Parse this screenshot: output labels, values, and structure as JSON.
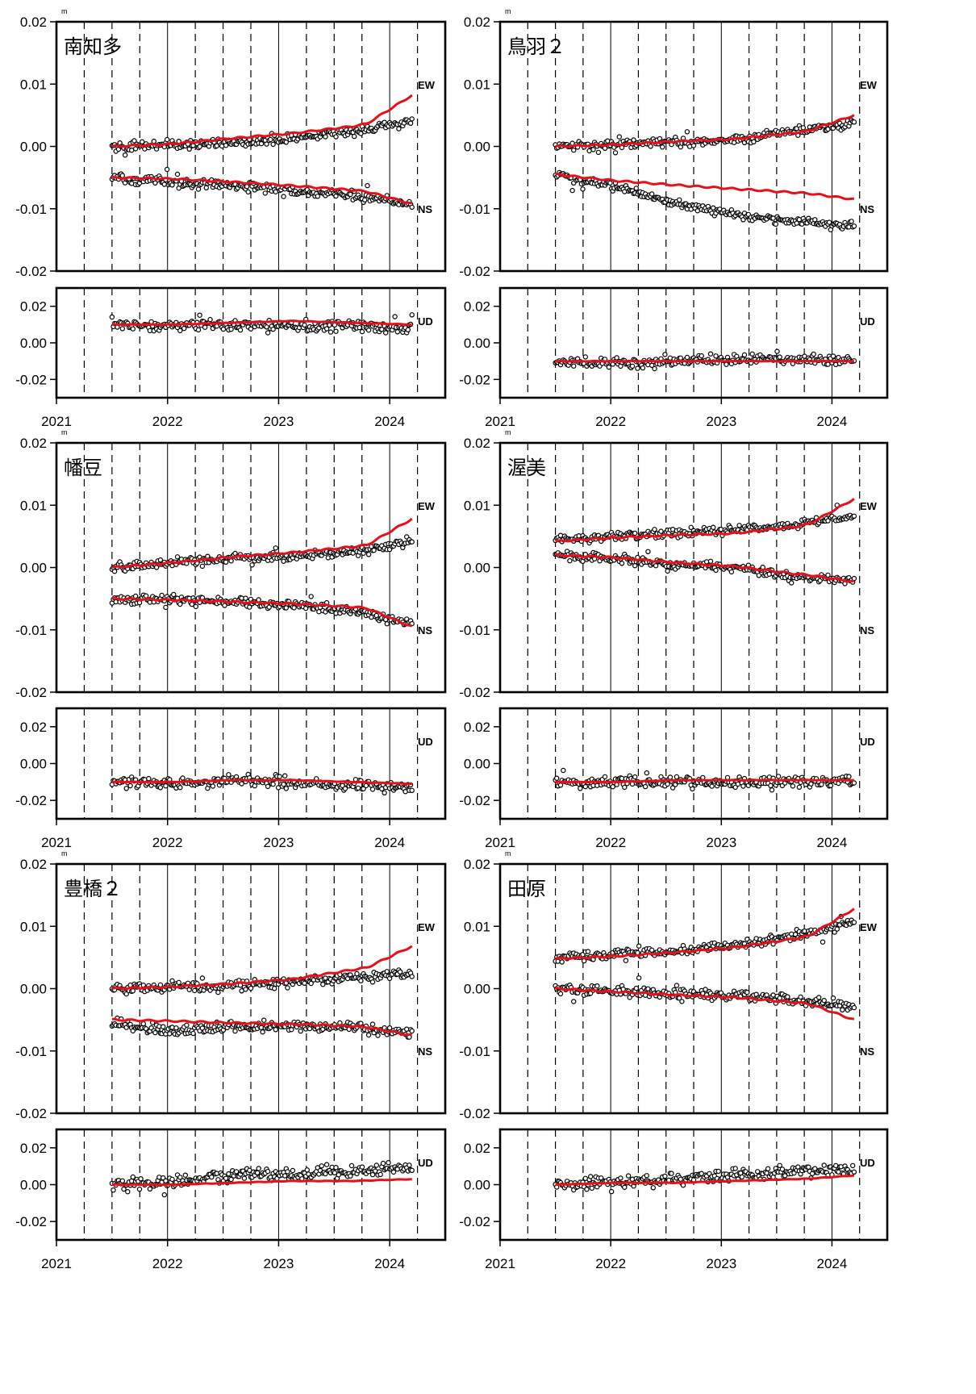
{
  "figure": {
    "unit": "m",
    "x_ticks": [
      "2021",
      "2022",
      "2023",
      "2024"
    ],
    "x_range": [
      2021.0,
      2024.5
    ],
    "horizontal": {
      "ylim": [
        -0.02,
        0.02
      ],
      "ticks": [
        "0.02",
        "0.01",
        "0.00",
        "-0.01",
        "-0.02"
      ],
      "labels": [
        "EW",
        "NS"
      ]
    },
    "vertical": {
      "ylim": [
        -0.03,
        0.03
      ],
      "ticks": [
        "0.02",
        "0.00",
        "-0.02"
      ],
      "label": "UD"
    },
    "colors": {
      "observed": "#000000",
      "model": "#e8101a",
      "frame": "#000000"
    }
  },
  "chart_data": [
    {
      "type": "scatter",
      "station": "南知多",
      "column": 0,
      "row": 0,
      "series": [
        {
          "component": "EW",
          "obs_start": 0.0,
          "obs_end": 0.0068,
          "model_end": 0.0082,
          "spread": 0.0006,
          "offset": [
            0.0,
            0.0002,
            0.0005,
            0.0013,
            0.0024,
            0.004
          ],
          "model": [
            0.0,
            0.0004,
            0.0013,
            0.0021,
            0.0032,
            0.005
          ]
        },
        {
          "component": "NS",
          "obs_start": -0.005,
          "obs_end": -0.0105,
          "model_end": -0.0092,
          "spread": 0.0006,
          "offset": [
            -0.005,
            -0.0058,
            -0.0063,
            -0.007,
            -0.0078,
            -0.0092
          ],
          "model": [
            -0.005,
            -0.0052,
            -0.0057,
            -0.0063,
            -0.007,
            -0.008
          ]
        },
        {
          "component": "UD",
          "obs_start": 0.01,
          "obs_end": 0.008,
          "model_end": 0.01,
          "spread": 0.0025,
          "offset": [
            0.01,
            0.009,
            0.01,
            0.009,
            0.009,
            0.008
          ],
          "model": [
            0.01,
            0.01,
            0.011,
            0.012,
            0.011,
            0.01
          ]
        }
      ]
    },
    {
      "type": "scatter",
      "station": "鳥羽２",
      "column": 1,
      "row": 0,
      "series": [
        {
          "component": "EW",
          "obs_start": 0.0,
          "obs_end": 0.0045,
          "model_end": 0.005,
          "spread": 0.0006,
          "offset": [
            0.0,
            0.0003,
            0.0008,
            0.001,
            0.0025,
            0.0038
          ],
          "model": [
            0.0,
            0.0003,
            0.0008,
            0.0012,
            0.0022,
            0.0036
          ]
        },
        {
          "component": "NS",
          "obs_start": -0.0045,
          "obs_end": -0.0135,
          "model_end": -0.0085,
          "spread": 0.0006,
          "offset": [
            -0.0045,
            -0.0065,
            -0.009,
            -0.011,
            -0.012,
            -0.0128
          ],
          "model": [
            -0.0045,
            -0.0055,
            -0.0062,
            -0.0068,
            -0.0074,
            -0.008
          ]
        },
        {
          "component": "UD",
          "obs_start": -0.01,
          "obs_end": -0.011,
          "model_end": -0.01,
          "spread": 0.0025,
          "offset": [
            -0.01,
            -0.011,
            -0.01,
            -0.009,
            -0.009,
            -0.01
          ],
          "model": [
            -0.01,
            -0.01,
            -0.01,
            -0.01,
            -0.01,
            -0.01
          ]
        }
      ]
    },
    {
      "type": "scatter",
      "station": "幡豆",
      "column": 0,
      "row": 1,
      "series": [
        {
          "component": "EW",
          "obs_start": 0.0,
          "obs_end": 0.0075,
          "model_end": 0.0078,
          "spread": 0.0006,
          "offset": [
            0.0,
            0.0008,
            0.0015,
            0.0018,
            0.0025,
            0.0042
          ],
          "model": [
            0.0,
            0.0008,
            0.0017,
            0.0024,
            0.0033,
            0.0045
          ]
        },
        {
          "component": "NS",
          "obs_start": -0.005,
          "obs_end": -0.012,
          "model_end": -0.0095,
          "spread": 0.0006,
          "offset": [
            -0.005,
            -0.0052,
            -0.0055,
            -0.006,
            -0.007,
            -0.009
          ],
          "model": [
            -0.005,
            -0.0052,
            -0.0055,
            -0.0058,
            -0.0063,
            -0.0072
          ]
        },
        {
          "component": "UD",
          "obs_start": -0.01,
          "obs_end": -0.014,
          "model_end": -0.011,
          "spread": 0.0025,
          "offset": [
            -0.01,
            -0.011,
            -0.009,
            -0.01,
            -0.012,
            -0.013
          ],
          "model": [
            -0.01,
            -0.01,
            -0.009,
            -0.009,
            -0.01,
            -0.011
          ]
        }
      ]
    },
    {
      "type": "scatter",
      "station": "渥美",
      "column": 1,
      "row": 1,
      "series": [
        {
          "component": "EW",
          "obs_start": 0.0045,
          "obs_end": 0.011,
          "model_end": 0.011,
          "spread": 0.0006,
          "offset": [
            0.0045,
            0.005,
            0.0055,
            0.006,
            0.0068,
            0.0085
          ],
          "model": [
            0.0042,
            0.0048,
            0.0052,
            0.0055,
            0.0065,
            0.0085
          ]
        },
        {
          "component": "NS",
          "obs_start": 0.002,
          "obs_end": -0.0025,
          "model_end": -0.0023,
          "spread": 0.0006,
          "offset": [
            0.002,
            0.0015,
            0.0005,
            0.0,
            -0.0015,
            -0.002
          ],
          "model": [
            0.002,
            0.0016,
            0.0008,
            0.0002,
            -0.001,
            -0.0018
          ]
        },
        {
          "component": "UD",
          "obs_start": -0.01,
          "obs_end": -0.01,
          "model_end": -0.009,
          "spread": 0.0025,
          "offset": [
            -0.01,
            -0.01,
            -0.01,
            -0.01,
            -0.01,
            -0.01
          ],
          "model": [
            -0.01,
            -0.01,
            -0.009,
            -0.009,
            -0.009,
            -0.009
          ]
        }
      ]
    },
    {
      "type": "scatter",
      "station": "豊橋２",
      "column": 0,
      "row": 2,
      "series": [
        {
          "component": "EW",
          "obs_start": 0.0,
          "obs_end": 0.0038,
          "model_end": 0.0068,
          "spread": 0.0007,
          "offset": [
            0.0,
            0.0003,
            0.0005,
            0.001,
            0.0018,
            0.0025
          ],
          "model": [
            0.0,
            0.0003,
            0.0008,
            0.0015,
            0.003,
            0.0045
          ]
        },
        {
          "component": "NS",
          "obs_start": -0.0055,
          "obs_end": -0.0085,
          "model_end": -0.0075,
          "spread": 0.0007,
          "offset": [
            -0.0055,
            -0.0068,
            -0.0062,
            -0.006,
            -0.0062,
            -0.0072
          ],
          "model": [
            -0.005,
            -0.0052,
            -0.0055,
            -0.0057,
            -0.006,
            -0.0068
          ]
        },
        {
          "component": "UD",
          "obs_start": 0.0,
          "obs_end": 0.01,
          "model_end": 0.003,
          "spread": 0.003,
          "offset": [
            0.0,
            0.001,
            0.005,
            0.006,
            0.007,
            0.009
          ],
          "model": [
            0.0,
            0.0,
            0.001,
            0.002,
            0.002,
            0.003
          ]
        }
      ]
    },
    {
      "type": "scatter",
      "station": "田原",
      "column": 1,
      "row": 2,
      "series": [
        {
          "component": "EW",
          "obs_start": 0.005,
          "obs_end": 0.013,
          "model_end": 0.0128,
          "spread": 0.0006,
          "offset": [
            0.005,
            0.0055,
            0.006,
            0.007,
            0.0085,
            0.0105
          ],
          "model": [
            0.0048,
            0.0052,
            0.0058,
            0.0066,
            0.008,
            0.01
          ]
        },
        {
          "component": "NS",
          "obs_start": 0.0,
          "obs_end": -0.0038,
          "model_end": -0.005,
          "spread": 0.0007,
          "offset": [
            0.0,
            -0.0005,
            -0.0008,
            -0.001,
            -0.0018,
            -0.0028
          ],
          "model": [
            0.0,
            -0.0005,
            -0.001,
            -0.0014,
            -0.0022,
            -0.0032
          ]
        },
        {
          "component": "UD",
          "obs_start": 0.0,
          "obs_end": 0.01,
          "model_end": 0.005,
          "spread": 0.0028,
          "offset": [
            0.0,
            0.001,
            0.003,
            0.005,
            0.007,
            0.009
          ],
          "model": [
            0.0,
            0.001,
            0.001,
            0.002,
            0.003,
            0.004
          ]
        }
      ]
    }
  ]
}
